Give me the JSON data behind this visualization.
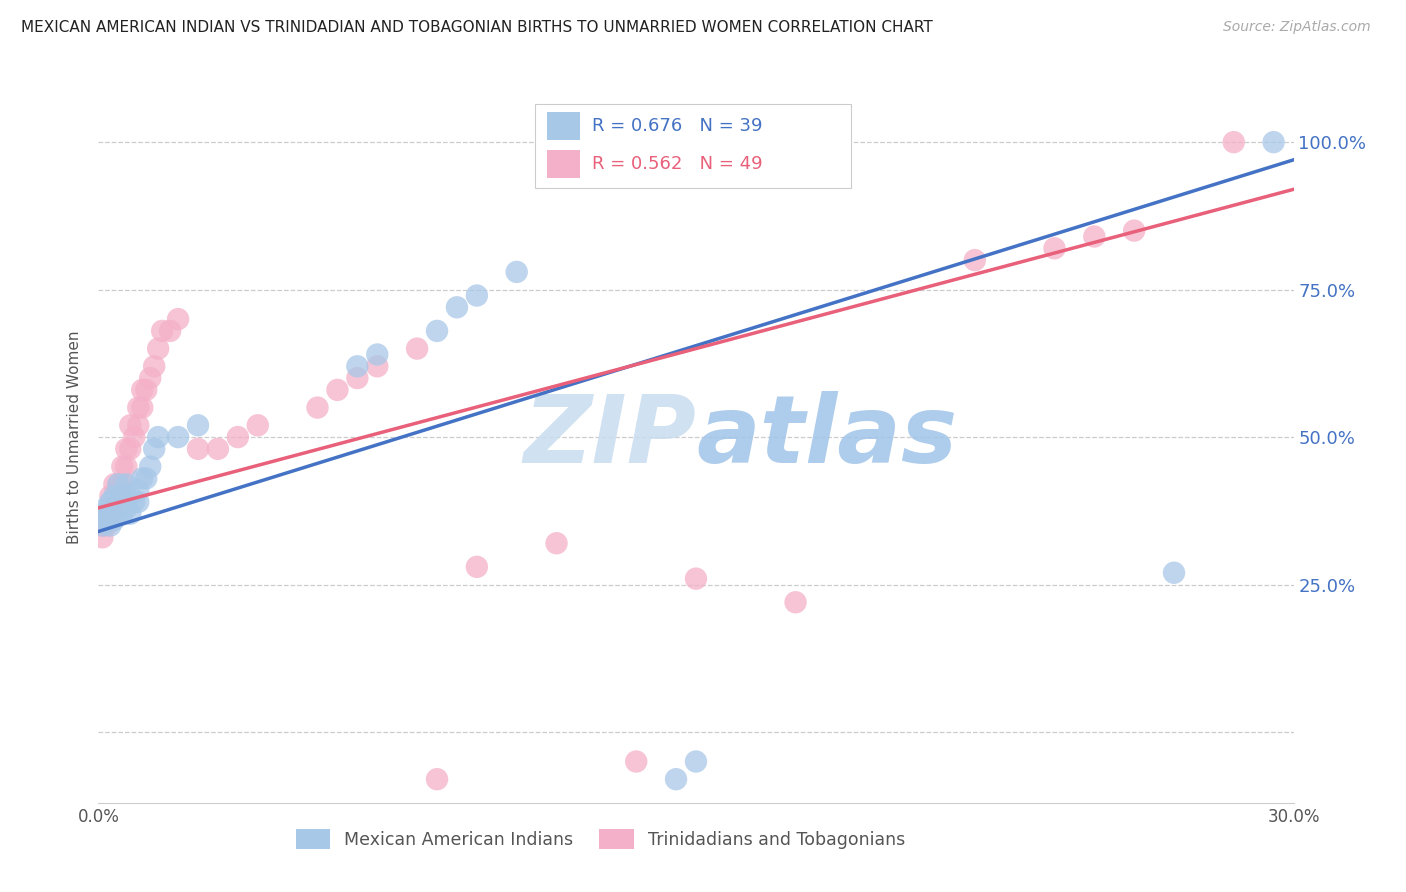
{
  "title": "MEXICAN AMERICAN INDIAN VS TRINIDADIAN AND TOBAGONIAN BIRTHS TO UNMARRIED WOMEN CORRELATION CHART",
  "source": "Source: ZipAtlas.com",
  "ylabel": "Births to Unmarried Women",
  "xlim": [
    0.0,
    0.3
  ],
  "ylim": [
    -0.12,
    1.12
  ],
  "yticks": [
    0.0,
    0.25,
    0.5,
    0.75,
    1.0
  ],
  "ytick_labels_right": [
    "",
    "25.0%",
    "50.0%",
    "75.0%",
    "100.0%"
  ],
  "xticks": [
    0.0,
    0.05,
    0.1,
    0.15,
    0.2,
    0.25,
    0.3
  ],
  "xtick_labels": [
    "0.0%",
    "",
    "",
    "",
    "",
    "",
    "30.0%"
  ],
  "blue_label": "Mexican American Indians",
  "pink_label": "Trinidadians and Tobagonians",
  "blue_R": "0.676",
  "blue_N": "39",
  "pink_R": "0.562",
  "pink_N": "49",
  "blue_color": "#a8c8e8",
  "pink_color": "#f4b0c8",
  "blue_line_color": "#4472c4",
  "pink_line_color": "#e8607a",
  "right_tick_color": "#4472c4",
  "watermark_color": "#ddeeff",
  "blue_x": [
    0.001,
    0.001,
    0.002,
    0.002,
    0.003,
    0.003,
    0.003,
    0.004,
    0.004,
    0.004,
    0.005,
    0.005,
    0.005,
    0.006,
    0.006,
    0.007,
    0.007,
    0.008,
    0.008,
    0.009,
    0.01,
    0.01,
    0.011,
    0.012,
    0.013,
    0.014,
    0.015,
    0.02,
    0.025,
    0.065,
    0.07,
    0.085,
    0.09,
    0.095,
    0.105,
    0.145,
    0.15,
    0.27,
    0.295
  ],
  "blue_y": [
    0.35,
    0.37,
    0.36,
    0.38,
    0.35,
    0.37,
    0.39,
    0.36,
    0.38,
    0.4,
    0.38,
    0.4,
    0.42,
    0.37,
    0.4,
    0.38,
    0.42,
    0.37,
    0.4,
    0.39,
    0.39,
    0.41,
    0.43,
    0.43,
    0.45,
    0.48,
    0.5,
    0.5,
    0.52,
    0.62,
    0.64,
    0.68,
    0.72,
    0.74,
    0.78,
    -0.08,
    -0.05,
    0.27,
    1.0
  ],
  "pink_x": [
    0.001,
    0.001,
    0.002,
    0.002,
    0.003,
    0.003,
    0.003,
    0.004,
    0.004,
    0.005,
    0.005,
    0.006,
    0.006,
    0.007,
    0.007,
    0.008,
    0.008,
    0.009,
    0.01,
    0.01,
    0.011,
    0.011,
    0.012,
    0.013,
    0.014,
    0.015,
    0.016,
    0.018,
    0.02,
    0.025,
    0.03,
    0.035,
    0.04,
    0.055,
    0.06,
    0.065,
    0.07,
    0.08,
    0.085,
    0.095,
    0.115,
    0.135,
    0.15,
    0.175,
    0.22,
    0.24,
    0.25,
    0.26,
    0.285
  ],
  "pink_y": [
    0.33,
    0.35,
    0.35,
    0.37,
    0.36,
    0.38,
    0.4,
    0.38,
    0.42,
    0.4,
    0.42,
    0.42,
    0.45,
    0.45,
    0.48,
    0.48,
    0.52,
    0.5,
    0.52,
    0.55,
    0.55,
    0.58,
    0.58,
    0.6,
    0.62,
    0.65,
    0.68,
    0.68,
    0.7,
    0.48,
    0.48,
    0.5,
    0.52,
    0.55,
    0.58,
    0.6,
    0.62,
    0.65,
    -0.08,
    0.28,
    0.32,
    -0.05,
    0.26,
    0.22,
    0.8,
    0.82,
    0.84,
    0.85,
    1.0
  ],
  "blue_line_x0": 0.0,
  "blue_line_y0": 0.34,
  "blue_line_x1": 0.3,
  "blue_line_y1": 0.97,
  "pink_line_x0": 0.0,
  "pink_line_y0": 0.38,
  "pink_line_x1": 0.3,
  "pink_line_y1": 0.92
}
